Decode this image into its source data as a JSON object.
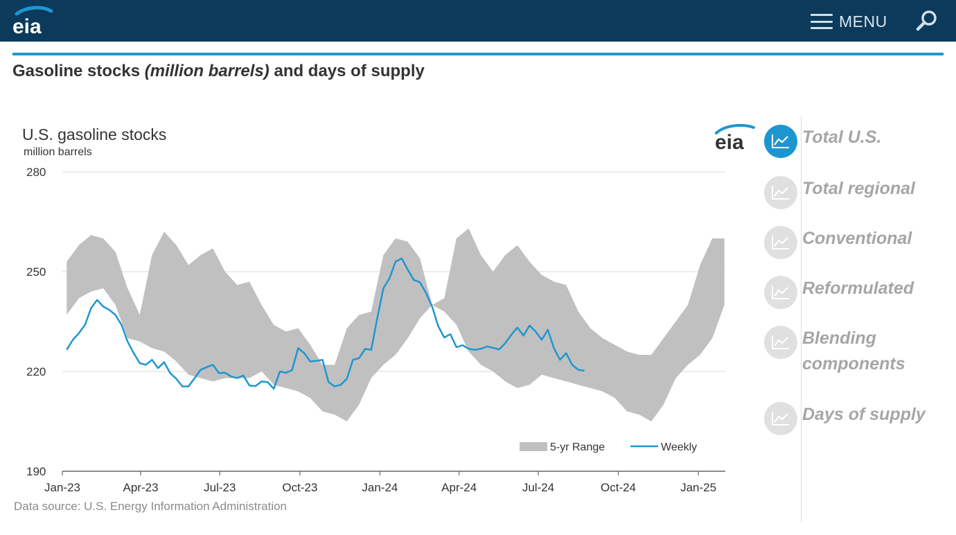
{
  "header": {
    "logo_text": "eia",
    "menu_label": "MENU"
  },
  "page": {
    "title_prefix": "Gasoline stocks ",
    "title_italic": "(million barrels)",
    "title_suffix": " and days of supply"
  },
  "sidebar": {
    "items": [
      {
        "label": "Total U.S.",
        "active": true
      },
      {
        "label": "Total regional",
        "active": false
      },
      {
        "label": "Conventional",
        "active": false
      },
      {
        "label": "Reformulated",
        "active": false
      },
      {
        "label": "Blending components",
        "active": false
      },
      {
        "label": "Days of supply",
        "active": false
      }
    ]
  },
  "colors": {
    "header_bg": "#0c3a5a",
    "accent": "#1d96cf",
    "range_fill": "#c0c0c0",
    "weekly_line": "#1d96cf"
  },
  "chart_data": {
    "type": "line",
    "title": "U.S. gasoline stocks",
    "subtitle": "million barrels",
    "logo_text": "eia",
    "source": "Data source: U.S. Energy Information Administration",
    "ylim": [
      190,
      280
    ],
    "yticks": [
      "280",
      "250",
      "220",
      "190"
    ],
    "ytick_values": [
      280,
      250,
      220,
      190
    ],
    "xlim": [
      "2023-01-01",
      "2025-02-01"
    ],
    "xticks": [
      {
        "label": "Jan-23",
        "date": "2023-01-01"
      },
      {
        "label": "Apr-23",
        "date": "2023-04-01"
      },
      {
        "label": "Jul-23",
        "date": "2023-07-01"
      },
      {
        "label": "Oct-23",
        "date": "2023-10-01"
      },
      {
        "label": "Jan-24",
        "date": "2024-01-01"
      },
      {
        "label": "Apr-24",
        "date": "2024-04-01"
      },
      {
        "label": "Jul-24",
        "date": "2024-07-01"
      },
      {
        "label": "Oct-24",
        "date": "2024-10-01"
      },
      {
        "label": "Jan-25",
        "date": "2025-01-01"
      }
    ],
    "grid": true,
    "legend_position": "bottom-right",
    "series": [
      {
        "name": "5-yr Range",
        "kind": "band",
        "x": [
          "2023-01-06",
          "2023-01-20",
          "2023-02-03",
          "2023-02-17",
          "2023-03-03",
          "2023-03-17",
          "2023-03-31",
          "2023-04-14",
          "2023-04-28",
          "2023-05-12",
          "2023-05-26",
          "2023-06-09",
          "2023-06-23",
          "2023-07-07",
          "2023-07-21",
          "2023-08-04",
          "2023-08-18",
          "2023-09-01",
          "2023-09-15",
          "2023-09-29",
          "2023-10-13",
          "2023-10-27",
          "2023-11-10",
          "2023-11-24",
          "2023-12-08",
          "2023-12-22",
          "2024-01-05",
          "2024-01-19",
          "2024-02-02",
          "2024-02-16",
          "2024-03-01",
          "2024-03-15",
          "2024-03-29",
          "2024-04-12",
          "2024-04-26",
          "2024-05-10",
          "2024-05-24",
          "2024-06-07",
          "2024-06-21",
          "2024-07-05",
          "2024-07-19",
          "2024-08-02",
          "2024-08-16",
          "2024-08-30",
          "2024-09-13",
          "2024-09-27",
          "2024-10-11",
          "2024-10-25",
          "2024-11-08",
          "2024-11-22",
          "2024-12-06",
          "2024-12-20",
          "2025-01-03",
          "2025-01-17",
          "2025-01-31"
        ],
        "low": [
          237,
          242,
          244,
          245,
          240,
          230,
          229,
          227,
          226,
          223,
          219,
          218,
          217,
          218,
          218,
          218,
          220,
          216,
          215,
          214,
          212,
          208,
          207,
          205,
          210,
          218,
          222,
          225,
          230,
          236,
          240,
          238,
          234,
          226,
          222,
          220,
          217,
          215,
          216,
          219,
          218,
          217,
          216,
          215,
          214,
          212,
          208,
          207,
          205,
          210,
          218,
          222,
          225,
          230,
          240
        ],
        "high": [
          253,
          258,
          261,
          260,
          256,
          245,
          237,
          255,
          262,
          258,
          252,
          255,
          257,
          250,
          246,
          247,
          240,
          234,
          232,
          233,
          228,
          222,
          222,
          233,
          237,
          238,
          255,
          260,
          259,
          254,
          240,
          242,
          260,
          263,
          255,
          250,
          255,
          258,
          253,
          249,
          247,
          246,
          238,
          233,
          230,
          228,
          226,
          225,
          225,
          230,
          235,
          240,
          252,
          260,
          260
        ]
      },
      {
        "name": "Weekly",
        "kind": "line",
        "x": [
          "2023-01-06",
          "2023-01-13",
          "2023-01-20",
          "2023-01-27",
          "2023-02-03",
          "2023-02-10",
          "2023-02-17",
          "2023-02-24",
          "2023-03-03",
          "2023-03-10",
          "2023-03-17",
          "2023-03-24",
          "2023-03-31",
          "2023-04-07",
          "2023-04-14",
          "2023-04-21",
          "2023-04-28",
          "2023-05-05",
          "2023-05-12",
          "2023-05-19",
          "2023-05-26",
          "2023-06-02",
          "2023-06-09",
          "2023-06-16",
          "2023-06-23",
          "2023-06-30",
          "2023-07-07",
          "2023-07-14",
          "2023-07-21",
          "2023-07-28",
          "2023-08-04",
          "2023-08-11",
          "2023-08-18",
          "2023-08-25",
          "2023-09-01",
          "2023-09-08",
          "2023-09-15",
          "2023-09-22",
          "2023-09-29",
          "2023-10-06",
          "2023-10-13",
          "2023-10-20",
          "2023-10-27",
          "2023-11-03",
          "2023-11-10",
          "2023-11-17",
          "2023-11-24",
          "2023-12-01",
          "2023-12-08",
          "2023-12-15",
          "2023-12-22",
          "2023-12-29",
          "2024-01-05",
          "2024-01-12",
          "2024-01-19",
          "2024-01-26",
          "2024-02-02",
          "2024-02-09",
          "2024-02-16",
          "2024-02-23",
          "2024-03-01",
          "2024-03-08",
          "2024-03-15",
          "2024-03-22",
          "2024-03-29",
          "2024-04-05",
          "2024-04-12",
          "2024-04-19",
          "2024-04-26",
          "2024-05-03",
          "2024-05-10",
          "2024-05-17",
          "2024-05-24",
          "2024-05-31",
          "2024-06-07",
          "2024-06-14",
          "2024-06-21",
          "2024-06-28",
          "2024-07-05",
          "2024-07-12",
          "2024-07-19",
          "2024-07-26",
          "2024-08-02",
          "2024-08-09",
          "2024-08-16",
          "2024-08-23"
        ],
        "values": [
          226.5,
          229.5,
          231.5,
          234,
          239,
          241.5,
          239.5,
          238.5,
          237,
          234,
          229,
          225.5,
          222.5,
          222,
          223.5,
          221,
          222.8,
          219.5,
          217.8,
          215.5,
          215.5,
          218,
          220.5,
          221.3,
          222,
          219.5,
          219.6,
          218.5,
          218,
          218.8,
          215.8,
          215.6,
          217,
          216.8,
          214.8,
          220,
          219.6,
          220.4,
          227,
          225.5,
          223,
          223.2,
          223.5,
          216.8,
          215.5,
          216,
          217.8,
          223.5,
          224,
          226.8,
          226.5,
          236,
          245,
          248,
          253,
          254,
          250.6,
          247.5,
          246.8,
          243.6,
          239.5,
          233.6,
          230.2,
          231.2,
          227.3,
          227.9,
          226.8,
          226.5,
          226.8,
          227.5,
          227.1,
          226.6,
          228.5,
          231,
          233.2,
          230.8,
          233.8,
          232,
          229.5,
          232.5,
          227,
          223.5,
          225.5,
          222,
          220.5,
          220.2
        ]
      }
    ]
  }
}
